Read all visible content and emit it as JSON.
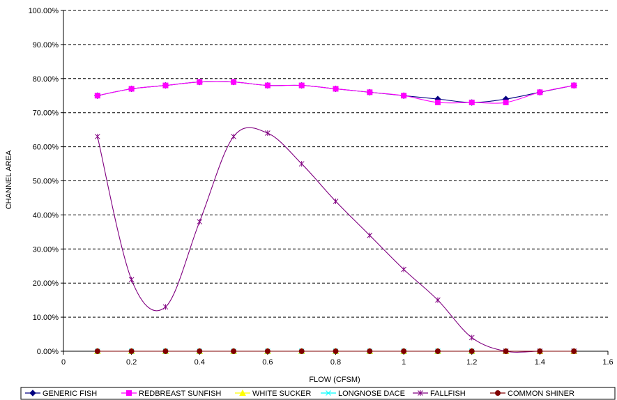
{
  "chart_data": {
    "type": "line",
    "title": "",
    "xlabel": "FLOW (CFSM)",
    "ylabel": "CHANNEL AREA",
    "xlim": [
      0,
      1.6
    ],
    "ylim": [
      0,
      100
    ],
    "x_ticks": [
      0,
      0.2,
      0.4,
      0.6,
      0.8,
      1,
      1.2,
      1.4,
      1.6
    ],
    "x_tick_labels": [
      "0",
      "0.2",
      "0.4",
      "0.6",
      "0.8",
      "1",
      "1.2",
      "1.4",
      "1.6"
    ],
    "y_ticks": [
      0,
      10,
      20,
      30,
      40,
      50,
      60,
      70,
      80,
      90,
      100
    ],
    "y_tick_labels": [
      "0.00%",
      "10.00%",
      "20.00%",
      "30.00%",
      "40.00%",
      "50.00%",
      "60.00%",
      "70.00%",
      "80.00%",
      "90.00%",
      "100.00%"
    ],
    "grid": "horizontal-dashed",
    "legend_position": "bottom",
    "x": [
      0.1,
      0.2,
      0.3,
      0.4,
      0.5,
      0.6,
      0.7,
      0.8,
      0.9,
      1.0,
      1.1,
      1.2,
      1.3,
      1.4,
      1.5
    ],
    "series": [
      {
        "name": "GENERIC FISH",
        "color": "#000080",
        "marker": "diamond",
        "values": [
          75,
          77,
          78,
          79,
          79,
          78,
          78,
          77,
          76,
          75,
          74,
          73,
          74,
          76,
          78
        ]
      },
      {
        "name": "REDBREAST SUNFISH",
        "color": "#ff00ff",
        "marker": "square",
        "values": [
          75,
          77,
          78,
          79,
          79,
          78,
          78,
          77,
          76,
          75,
          73,
          73,
          73,
          76,
          78
        ]
      },
      {
        "name": "WHITE SUCKER",
        "color": "#ffff00",
        "marker": "triangle",
        "values": [
          0,
          0,
          0,
          0,
          0,
          0,
          0,
          0,
          0,
          0,
          0,
          0,
          0,
          0,
          0
        ]
      },
      {
        "name": "LONGNOSE DACE",
        "color": "#00ffff",
        "marker": "x",
        "values": [
          0,
          0,
          0,
          0,
          0,
          0,
          0,
          0,
          0,
          0,
          0,
          0,
          0,
          0,
          0
        ]
      },
      {
        "name": "FALLFISH",
        "color": "#800080",
        "marker": "star",
        "values": [
          63,
          21,
          13,
          38,
          63,
          64,
          55,
          44,
          34,
          24,
          15,
          4,
          0,
          0,
          0
        ]
      },
      {
        "name": "COMMON SHINER",
        "color": "#800000",
        "marker": "circle",
        "values": [
          0,
          0,
          0,
          0,
          0,
          0,
          0,
          0,
          0,
          0,
          0,
          0,
          0,
          0,
          0
        ]
      }
    ]
  }
}
